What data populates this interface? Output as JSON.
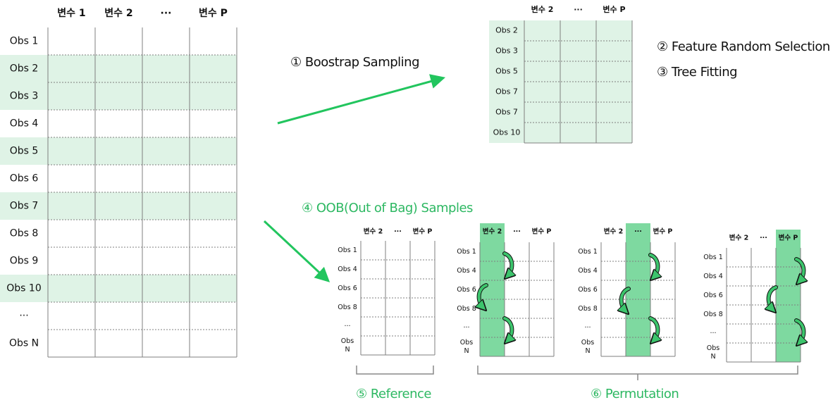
{
  "main_table": {
    "headers": [
      "변수 1",
      "변수 2",
      "···",
      "변수 P"
    ],
    "rows": [
      "Obs 1",
      "Obs 2",
      "Obs 3",
      "Obs 4",
      "Obs 5",
      "Obs 6",
      "Obs 7",
      "Obs 8",
      "Obs 9",
      "Obs 10",
      "···",
      "Obs N"
    ],
    "highlighted": [
      1,
      2,
      4,
      6,
      9
    ]
  },
  "bootstrap_table": {
    "headers": [
      "변수 2",
      "···",
      "변수 P"
    ],
    "rows": [
      "Obs 2",
      "Obs 3",
      "Obs 5",
      "Obs 7",
      "Obs 7",
      "Obs 10"
    ]
  },
  "oob_tables": [
    {
      "headers": [
        "변수 2",
        "···",
        "변수 P"
      ],
      "rows": [
        "Obs 1",
        "Obs 4",
        "Obs 6",
        "Obs 8",
        "···",
        "Obs N"
      ],
      "highlight_col": -1
    },
    {
      "headers": [
        "변수 2",
        "···",
        "변수 P"
      ],
      "rows": [
        "Obs 1",
        "Obs 4",
        "Obs 6",
        "Obs 8",
        "···",
        "Obs N"
      ],
      "highlight_col": 0
    },
    {
      "headers": [
        "변수 2",
        "···",
        "변수 P"
      ],
      "rows": [
        "Obs 1",
        "Obs 4",
        "Obs 6",
        "Obs 8",
        "···",
        "Obs N"
      ],
      "highlight_col": 1
    },
    {
      "headers": [
        "변수 2",
        "···",
        "변수 P"
      ],
      "rows": [
        "Obs 1",
        "Obs 4",
        "Obs 6",
        "Obs 8",
        "···",
        "Obs N"
      ],
      "highlight_col": 2
    }
  ],
  "steps": {
    "bootstrap": "① Boostrap Sampling",
    "feature": "② Feature Random Selection",
    "tree": "③ Tree Fitting",
    "oob": "④ OOB(Out of Bag) Samples",
    "reference": "⑤ Reference",
    "permutation": "⑥ Permutation"
  },
  "colors": {
    "row_highlight": "#dff3e6",
    "col_highlight": "#7ed9a0",
    "accent": "#2db862",
    "arrow": "#22c55e",
    "grid": "#7f7f7f"
  }
}
